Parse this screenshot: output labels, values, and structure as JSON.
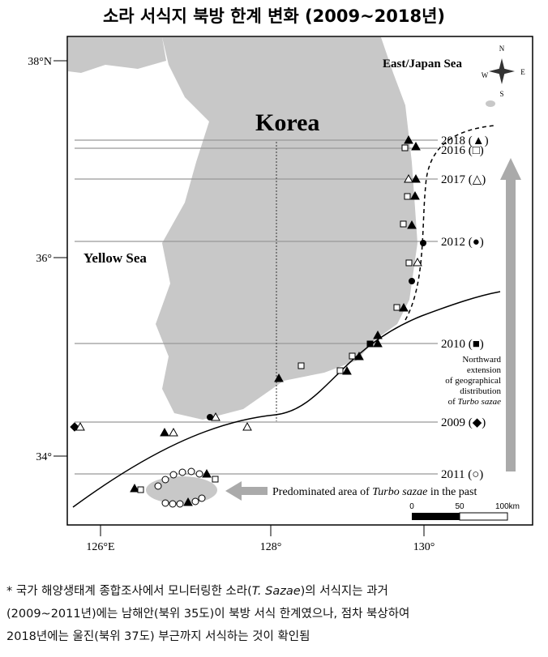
{
  "title": "소라 서식지 북방 한계 변화 (2009~2018년)",
  "map": {
    "latitudes": [
      "38°N",
      "36°",
      "34°"
    ],
    "longitudes": [
      "126°E",
      "128°",
      "130°"
    ],
    "places": {
      "korea": "Korea",
      "yellow_sea": "Yellow Sea",
      "east_sea": "East/Japan Sea"
    },
    "compass": {
      "n": "N",
      "s": "S",
      "w": "W",
      "e": "E"
    },
    "years": [
      "2018 (▲)",
      "2016 (□)",
      "2017 (△)",
      "2012 (●)",
      "2010 (■)",
      "2009 (◆)",
      "2011 (○)"
    ],
    "extension_note": {
      "lines": [
        "Northward",
        "extension",
        "of geographical",
        "distribution"
      ],
      "last_prefix": "of ",
      "last_italic": "Turbo sazae"
    },
    "past_area": {
      "prefix": "Predominated area of ",
      "italic": "Turbo sazae",
      "suffix": " in the past"
    },
    "scale": [
      "0",
      "50",
      "100km"
    ]
  },
  "footnote": {
    "line1": {
      "a": "* 국가 해양생태계 종합조사에서 모니터링한 소라(",
      "b": "T. Sazae",
      "c": ")의 서식지는 과거"
    },
    "line2": "(2009~2011년)에는 남해안(북위 35도)이 북방 서식 한계였으나, 점차 북상하여",
    "line3": "2018년에는 울진(북위 37도) 부근까지 서식하는 것이 확인됨"
  }
}
